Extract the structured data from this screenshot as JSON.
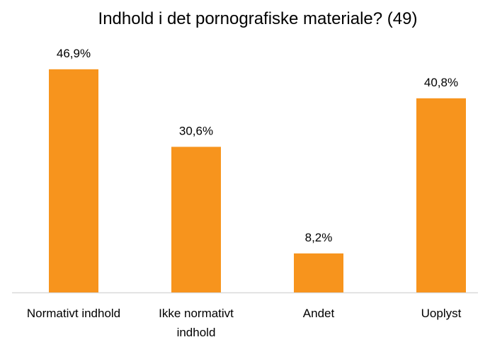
{
  "chart_data": {
    "type": "bar",
    "title": "Indhold i det pornografiske materiale? (49)",
    "categories": [
      "Normativt indhold",
      "Ikke normativt indhold",
      "Andet",
      "Uoplyst"
    ],
    "values": [
      46.9,
      30.6,
      8.2,
      40.8
    ],
    "value_labels": [
      "46,9%",
      "30,6%",
      "8,2%",
      "40,8%"
    ],
    "color": "#f7941d"
  }
}
